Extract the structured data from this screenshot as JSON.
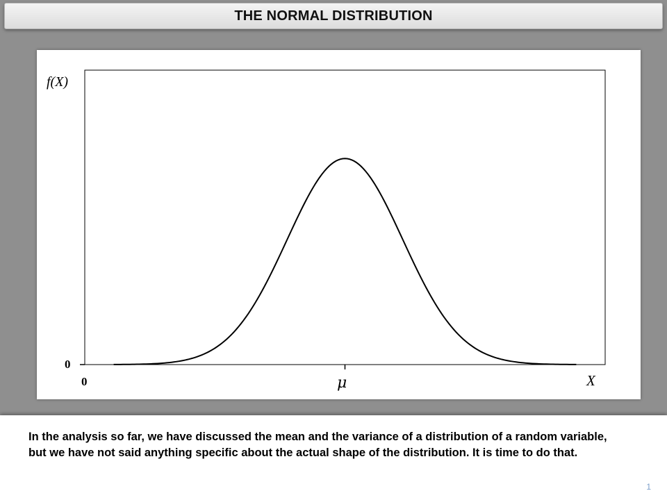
{
  "slide": {
    "title": "THE NORMAL DISTRIBUTION",
    "caption": "In the analysis so far, we have discussed the mean and the variance of a distribution of a random variable, but we have not said anything specific about the actual shape of the distribution.  It is time to do that.",
    "page_number": "1"
  },
  "chart_data": {
    "type": "line",
    "title": "",
    "ylabel": "f(X)",
    "xlabel": "X",
    "x_ticks": [
      {
        "value": 0,
        "label": "0"
      },
      {
        "value": 0,
        "label": "μ"
      }
    ],
    "y_ticks": [
      {
        "value": 0,
        "label": "0"
      }
    ],
    "series": [
      {
        "distribution": "normal",
        "mean": 0,
        "sd": 1,
        "x_range": [
          -4,
          4
        ]
      }
    ],
    "xlim": [
      -4.5,
      4.5
    ],
    "ylim": [
      0,
      0.57
    ],
    "grid": false,
    "colors": {
      "curve": "#000000",
      "frame": "#000000"
    }
  }
}
